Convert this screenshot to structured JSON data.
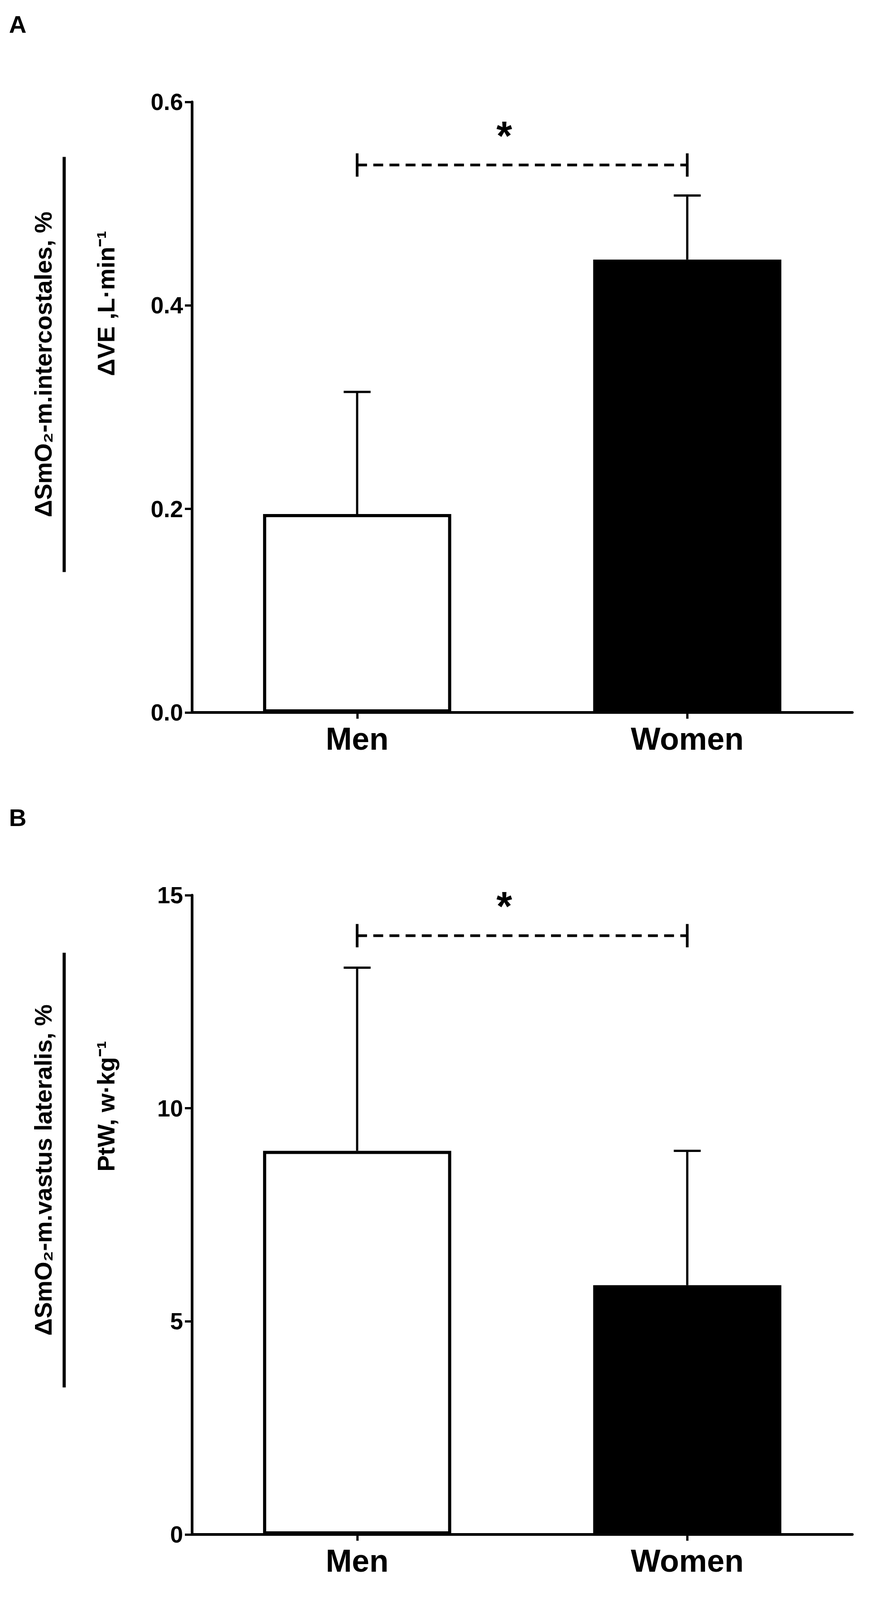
{
  "chart_data": [
    {
      "type": "bar",
      "title": "A",
      "categories": [
        "Men",
        "Women"
      ],
      "values": [
        0.195,
        0.445
      ],
      "error": [
        0.12,
        0.063
      ],
      "colors": [
        "#ffffff",
        "#000000"
      ],
      "y_label": {
        "numerator": "ΔSmO₂-m.intercostales, %",
        "denominator": "ΔVE ,L·min⁻¹"
      },
      "ylim": [
        0,
        0.6
      ],
      "yticks": [
        {
          "value": 0,
          "label": "0.0"
        },
        0.2,
        0.4,
        0.6
      ],
      "grid": false,
      "annotations": [
        {
          "text": "*",
          "between": [
            "Men",
            "Women"
          ]
        }
      ]
    },
    {
      "type": "bar",
      "title": "B",
      "categories": [
        "Men",
        "Women"
      ],
      "values": [
        9.0,
        5.85
      ],
      "error": [
        4.3,
        3.15
      ],
      "colors": [
        "#ffffff",
        "#000000"
      ],
      "y_label": {
        "numerator": "ΔSmO₂-m.vastus lateralis, %",
        "denominator": "PtW, w·kg⁻¹"
      },
      "ylim": [
        0,
        15
      ],
      "yticks": [
        0,
        5,
        10,
        15
      ],
      "grid": false,
      "annotations": [
        {
          "text": "*",
          "between": [
            "Men",
            "Women"
          ]
        }
      ]
    }
  ]
}
